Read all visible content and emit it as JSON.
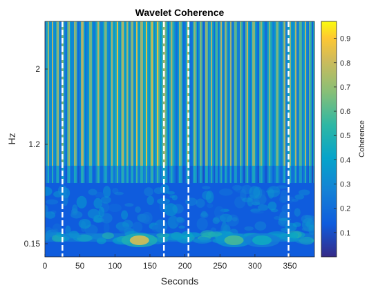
{
  "chart_data": {
    "type": "heatmap",
    "title": "Wavelet Coherence",
    "xlabel": "Seconds",
    "ylabel": "Hz",
    "xlim": [
      0,
      385
    ],
    "x_ticks": [
      0,
      50,
      100,
      150,
      200,
      250,
      300,
      350
    ],
    "y_ticks": [
      {
        "value": 2,
        "label": "2"
      },
      {
        "value": 1.2,
        "label": "1.2"
      },
      {
        "value": 0.15,
        "label": "0.15"
      }
    ],
    "colorbar": {
      "label": "Coherence",
      "range": [
        0,
        0.97
      ],
      "ticks": [
        0.1,
        0.2,
        0.3,
        0.4,
        0.5,
        0.6,
        0.7,
        0.8,
        0.9
      ],
      "colormap": "parula"
    },
    "boundaries_seconds": [
      25,
      170,
      205,
      348
    ],
    "high_coherence_regions": [
      {
        "x": 135,
        "hz": 0.15,
        "value": 0.85
      },
      {
        "x": 270,
        "hz": 0.15,
        "value": 0.6
      },
      {
        "x": 310,
        "hz": 0.15,
        "value": 0.45
      }
    ],
    "grid": false
  }
}
